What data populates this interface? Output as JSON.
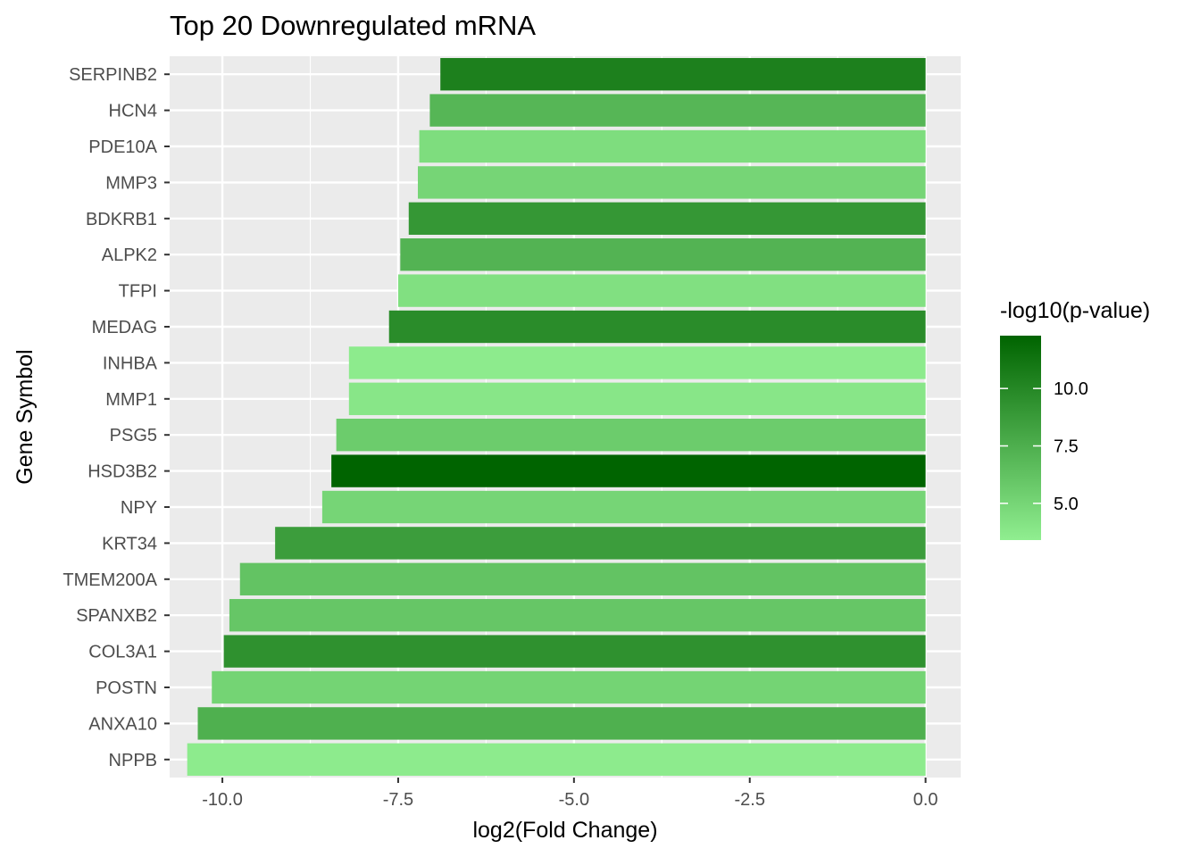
{
  "chart_data": {
    "type": "bar",
    "orientation": "horizontal",
    "title": "Top 20 Downregulated mRNA",
    "xlabel": "log2(Fold Change)",
    "ylabel": "Gene Symbol",
    "xlim": [
      -10.75,
      0.5
    ],
    "x_ticks": [
      -10.0,
      -7.5,
      -5.0,
      -2.5,
      0.0
    ],
    "x_tick_labels": [
      "-10.0",
      "-7.5",
      "-5.0",
      "-2.5",
      "0.0"
    ],
    "grid": true,
    "categories": [
      "SERPINB2",
      "HCN4",
      "PDE10A",
      "MMP3",
      "BDKRB1",
      "ALPK2",
      "TFPI",
      "MEDAG",
      "INHBA",
      "MMP1",
      "PSG5",
      "HSD3B2",
      "NPY",
      "KRT34",
      "TMEM200A",
      "SPANXB2",
      "COL3A1",
      "POSTN",
      "ANXA10",
      "NPPB"
    ],
    "values": [
      -6.9,
      -7.05,
      -7.2,
      -7.22,
      -7.35,
      -7.47,
      -7.5,
      -7.63,
      -8.2,
      -8.2,
      -8.38,
      -8.45,
      -8.58,
      -9.25,
      -9.75,
      -9.9,
      -9.98,
      -10.15,
      -10.35,
      -10.5
    ],
    "color_values": [
      10.5,
      7.0,
      4.5,
      5.0,
      9.0,
      7.2,
      4.3,
      9.7,
      3.6,
      3.9,
      5.6,
      12.3,
      5.0,
      8.6,
      6.2,
      6.0,
      9.4,
      5.1,
      7.4,
      3.6
    ],
    "legend": {
      "title": "-log10(p-value)",
      "position": "right",
      "min": 3.4,
      "max": 12.3,
      "ticks": [
        10.0,
        7.5,
        5.0
      ],
      "tick_labels": [
        "10.0",
        "7.5",
        "5.0"
      ],
      "low_color": "#90ee90",
      "high_color": "#006400"
    },
    "panel_background": "#ebebeb",
    "grid_color": "#ffffff"
  }
}
